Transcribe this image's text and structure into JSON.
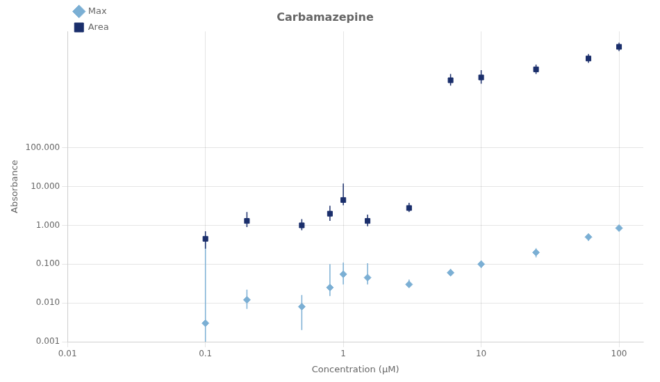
{
  "chart_data": {
    "type": "scatter",
    "title": "Carbamazepine",
    "xlabel": "Concentration (μM)",
    "ylabel": "Absorbance",
    "log": true,
    "grid": true,
    "legend": "upper left",
    "xlim": [
      0.01,
      150
    ],
    "ylim": [
      0.001,
      100000
    ],
    "xticks": [
      0.01,
      0.1,
      1,
      10,
      100
    ],
    "yticks": [
      0.001,
      {
        "value": 0.01,
        "label": "0.010"
      },
      {
        "value": 0.1,
        "label": "0.100"
      },
      {
        "value": 1,
        "label": "1.000"
      },
      {
        "value": 10,
        "label": "10.000"
      },
      {
        "value": 100,
        "label": "100.000"
      }
    ],
    "x": [
      0.1,
      0.2,
      0.5,
      0.8,
      1.0,
      1.5,
      3.0,
      6.0,
      10.0,
      25.0,
      60.0,
      100.0
    ],
    "series": [
      {
        "name": "Max",
        "color": "#7bafd4",
        "marker": "diamond",
        "values": [
          0.003,
          0.012,
          0.008,
          0.025,
          0.055,
          0.045,
          0.03,
          0.06,
          0.1,
          0.2,
          0.5,
          0.85
        ],
        "yerr_lo": [
          0.002,
          0.005,
          0.006,
          0.01,
          0.025,
          0.015,
          0.005,
          0.01,
          0.02,
          0.05,
          0.1,
          0.15
        ],
        "yerr_hi": [
          0.55,
          0.01,
          0.008,
          0.075,
          0.055,
          0.06,
          0.01,
          0.015,
          0.025,
          0.055,
          0.11,
          0.17
        ]
      },
      {
        "name": "Area",
        "color": "#1a2e6b",
        "marker": "square",
        "values": [
          0.45,
          1.3,
          1.0,
          2.0,
          4.5,
          1.3,
          2.8,
          5500,
          6500,
          10500,
          20000,
          40000
        ],
        "yerr_lo": [
          0.2,
          0.4,
          0.25,
          0.7,
          1.2,
          0.35,
          0.6,
          1500,
          2000,
          2500,
          4500,
          9000
        ],
        "yerr_hi": [
          0.25,
          0.9,
          0.45,
          1.2,
          7.5,
          0.6,
          1.0,
          2500,
          3500,
          3500,
          6000,
          11000
        ]
      }
    ]
  }
}
